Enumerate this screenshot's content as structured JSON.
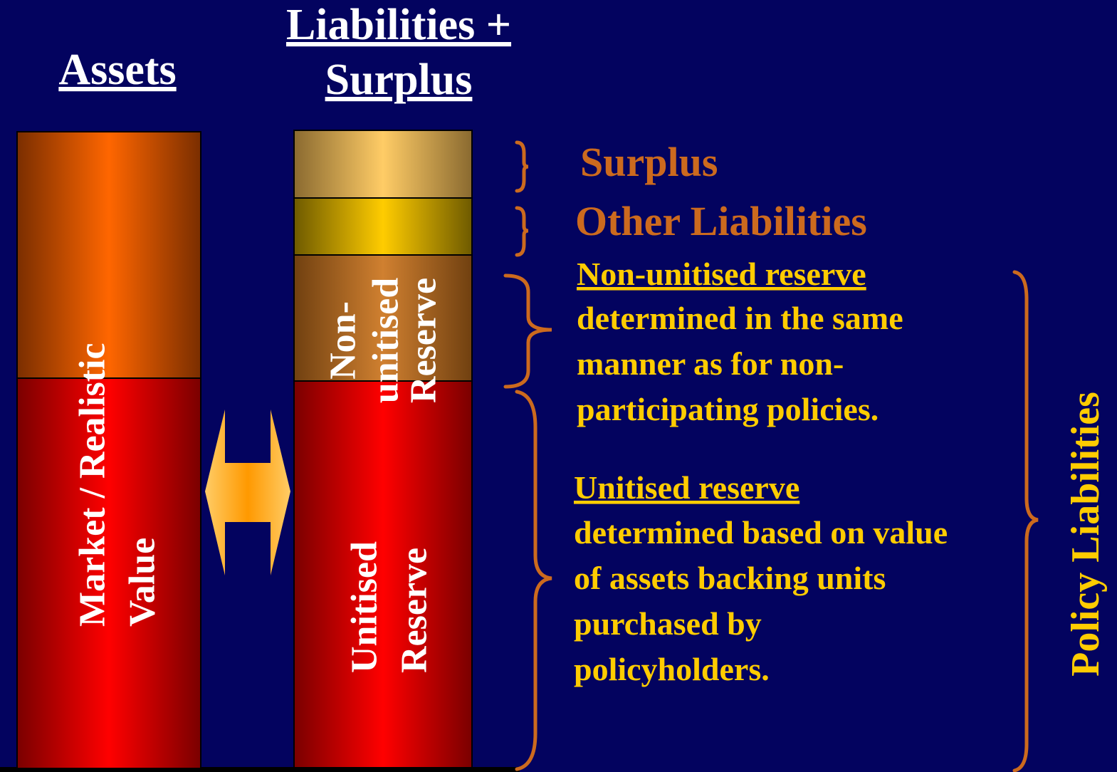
{
  "headings": {
    "assets": "Assets",
    "liabilities": [
      "Liabilities +",
      "Surplus"
    ]
  },
  "bars": {
    "assets": [
      "Market / Realistic",
      "Value"
    ],
    "non_unitised": [
      "Non-",
      "unitised",
      "Reserve"
    ],
    "unitised": [
      "Unitised",
      "Reserve"
    ]
  },
  "labels": {
    "surplus": "Surplus",
    "other_liabilities": "Other Liabilities",
    "policy_liabilities": "Policy Liabilities"
  },
  "notes": [
    {
      "title": "Non-unitised reserve",
      "lines": [
        "determined in the same",
        "manner as for non-",
        "participating policies."
      ]
    },
    {
      "title": "Unitised reserve",
      "lines": [
        "determined based on value",
        "of assets backing units",
        "purchased by",
        "policyholders."
      ]
    }
  ]
}
